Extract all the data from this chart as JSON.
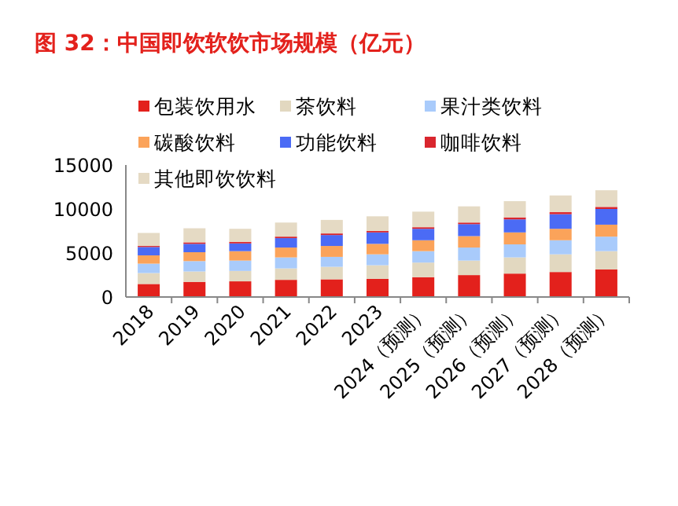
{
  "chart_data": {
    "type": "bar",
    "title": "图 32：中国即饮软饮市场规模（亿元）",
    "stacked": true,
    "legend": "top",
    "categories": [
      "2018",
      "2019",
      "2020",
      "2021",
      "2022",
      "2023",
      "2024（预测）",
      "2025（预测）",
      "2026（预测）",
      "2027（预测）",
      "2028（预测）"
    ],
    "series": [
      {
        "name": "包装饮用水",
        "color": "#e3211c",
        "values": [
          1480,
          1720,
          1780,
          1950,
          2010,
          2070,
          2250,
          2490,
          2660,
          2840,
          3140
        ]
      },
      {
        "name": "茶饮料",
        "color": "#e2d8c0",
        "values": [
          1240,
          1180,
          1180,
          1300,
          1420,
          1540,
          1660,
          1650,
          1840,
          2010,
          2070
        ]
      },
      {
        "name": "果汁类饮料",
        "color": "#a9cbfb",
        "values": [
          1070,
          1180,
          1180,
          1250,
          1130,
          1240,
          1300,
          1480,
          1480,
          1600,
          1650
        ]
      },
      {
        "name": "碳酸饮料",
        "color": "#fba35a",
        "values": [
          940,
          1010,
          1070,
          1120,
          1240,
          1190,
          1240,
          1300,
          1360,
          1300,
          1360
        ]
      },
      {
        "name": "功能饮料",
        "color": "#4b6bf5",
        "values": [
          950,
          950,
          880,
          1070,
          1240,
          1300,
          1300,
          1360,
          1480,
          1660,
          1780
        ]
      },
      {
        "name": "咖啡饮料",
        "color": "#d9262e",
        "values": [
          120,
          170,
          180,
          170,
          180,
          170,
          180,
          180,
          230,
          230,
          240
        ]
      },
      {
        "name": "其他即饮饮料",
        "color": "#e5dac4",
        "values": [
          1480,
          1600,
          1480,
          1600,
          1540,
          1660,
          1770,
          1840,
          1840,
          1900,
          1890
        ]
      }
    ],
    "ylim": [
      0,
      15000
    ],
    "yticks": [
      0,
      5000,
      10000,
      15000
    ],
    "grid": false
  }
}
